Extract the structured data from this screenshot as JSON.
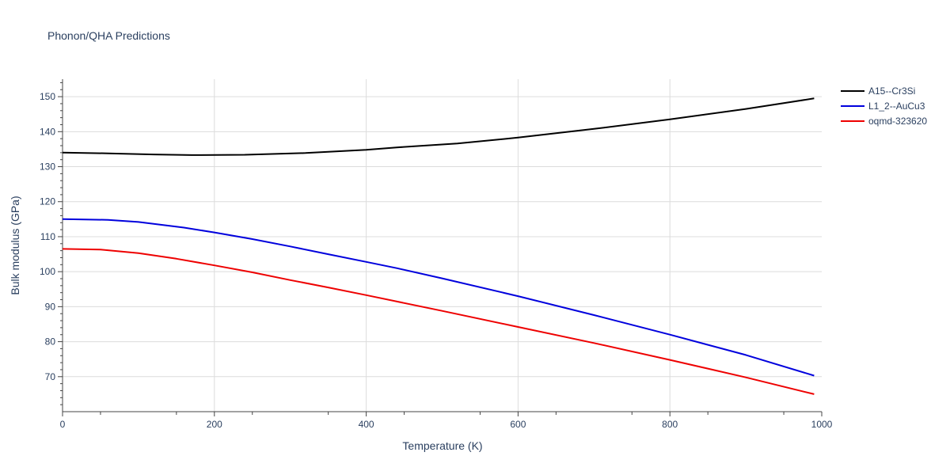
{
  "chart_data": {
    "type": "line",
    "title": "Phonon/QHA Predictions",
    "xlabel": "Temperature (K)",
    "ylabel": "Bulk modulus (GPa)",
    "xlim": [
      0,
      1000
    ],
    "ylim": [
      60,
      155
    ],
    "xticks": [
      0,
      200,
      400,
      600,
      800,
      1000
    ],
    "yticks": [
      70,
      80,
      90,
      100,
      110,
      120,
      130,
      140,
      150
    ],
    "grid": true,
    "legend": "top-right",
    "series": [
      {
        "name": "A15--Cr3Si",
        "color": "#000000",
        "x": [
          0,
          60,
          120,
          170,
          240,
          320,
          400,
          440,
          520,
          600,
          700,
          800,
          900,
          990
        ],
        "y": [
          134.0,
          133.8,
          133.5,
          133.3,
          133.4,
          133.9,
          134.8,
          135.5,
          136.6,
          138.3,
          140.8,
          143.5,
          146.5,
          149.5
        ]
      },
      {
        "name": "L1_2--AuCu3",
        "color": "#0000dd",
        "x": [
          0,
          60,
          100,
          160,
          200,
          250,
          300,
          350,
          400,
          440,
          500,
          600,
          700,
          800,
          900,
          990
        ],
        "y": [
          115.0,
          114.8,
          114.2,
          112.6,
          111.2,
          109.3,
          107.2,
          105.0,
          102.8,
          101.0,
          98.1,
          93.0,
          87.6,
          82.0,
          76.2,
          70.3
        ]
      },
      {
        "name": "oqmd-323620",
        "color": "#ee0000",
        "x": [
          0,
          50,
          100,
          150,
          200,
          250,
          300,
          350,
          400,
          500,
          600,
          700,
          800,
          900,
          990
        ],
        "y": [
          106.5,
          106.3,
          105.3,
          103.7,
          101.8,
          99.8,
          97.6,
          95.5,
          93.3,
          88.8,
          84.2,
          79.6,
          74.8,
          69.8,
          65.0
        ]
      }
    ]
  }
}
